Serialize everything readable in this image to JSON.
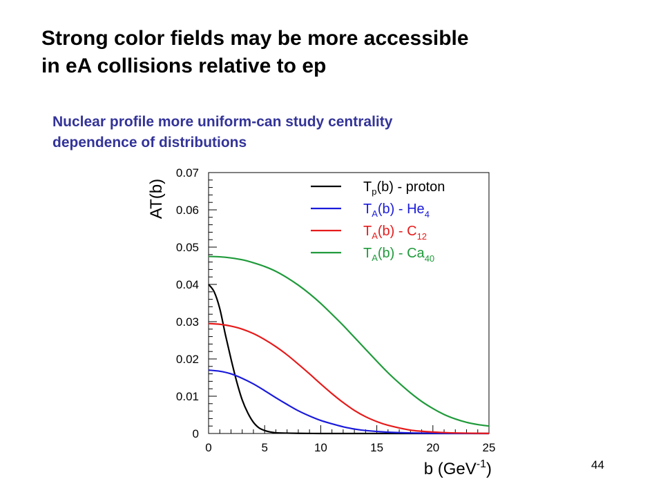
{
  "slide": {
    "title_lines": [
      "Strong color fields may be more accessible",
      "in eA collisions relative to ep"
    ],
    "subtitle_lines": [
      "Nuclear profile more uniform-can study centrality",
      "dependence of distributions"
    ],
    "page_number": "44"
  },
  "chart_data": {
    "type": "line",
    "ylabel": "AT(b)",
    "xlabel": {
      "main": "b (GeV",
      "sup": "-1",
      "close": ")"
    },
    "xlim": [
      0,
      25
    ],
    "ylim": [
      0,
      0.07
    ],
    "xticks": [
      0,
      5,
      10,
      15,
      20,
      25
    ],
    "xtick_labels": [
      "0",
      "5",
      "10",
      "15",
      "20",
      "25"
    ],
    "yticks": [
      0,
      0.01,
      0.02,
      0.03,
      0.04,
      0.05,
      0.06,
      0.07
    ],
    "ytick_labels": [
      "0",
      "0.01",
      "0.02",
      "0.03",
      "0.04",
      "0.05",
      "0.06",
      "0.07"
    ],
    "legend_position": "top-right",
    "grid": false,
    "series": [
      {
        "legend": {
          "main": "T",
          "sub": "p",
          "rest": "(b) - proton",
          "sub2": ""
        },
        "color": "#000000",
        "x": [
          0,
          0.5,
          1,
          1.5,
          2,
          2.5,
          3,
          3.5,
          4,
          4.5,
          5,
          5.5,
          6,
          7,
          8,
          10,
          12,
          15,
          20,
          25
        ],
        "y": [
          0.04,
          0.038,
          0.0335,
          0.0265,
          0.02,
          0.014,
          0.009,
          0.0055,
          0.003,
          0.0015,
          0.0008,
          0.0004,
          0.0002,
          0.0001,
          5e-05,
          0,
          0,
          0,
          0,
          0
        ]
      },
      {
        "legend": {
          "main": "T",
          "sub": "A",
          "rest": "(b) - He",
          "sub2": "4"
        },
        "color": "#1a1adb",
        "x": [
          0,
          1,
          2,
          3,
          4,
          5,
          6,
          7,
          8,
          9,
          10,
          11,
          12,
          13,
          14,
          16,
          18,
          20,
          22,
          25
        ],
        "y": [
          0.017,
          0.0167,
          0.016,
          0.0148,
          0.0133,
          0.0115,
          0.0096,
          0.0078,
          0.0061,
          0.0047,
          0.0035,
          0.0026,
          0.0018,
          0.0012,
          0.0008,
          0.00035,
          0.00015,
          6e-05,
          2e-05,
          0
        ]
      },
      {
        "legend": {
          "main": "T",
          "sub": "A",
          "rest": "(b) - C",
          "sub2": "12"
        },
        "color": "#e61a1a",
        "x": [
          0,
          1,
          2,
          3,
          4,
          5,
          6,
          7,
          8,
          9,
          10,
          11,
          12,
          13,
          14,
          15,
          16,
          18,
          20,
          22,
          25
        ],
        "y": [
          0.0295,
          0.0293,
          0.0288,
          0.028,
          0.0268,
          0.0252,
          0.0233,
          0.0211,
          0.0186,
          0.016,
          0.0133,
          0.0107,
          0.0083,
          0.0062,
          0.0045,
          0.0032,
          0.0022,
          0.0009,
          0.0004,
          0.00015,
          3e-05
        ]
      },
      {
        "legend": {
          "main": "T",
          "sub": "A",
          "rest": "(b) - Ca",
          "sub2": "40"
        },
        "color": "#1f9a3a",
        "x": [
          0,
          1,
          2,
          3,
          4,
          5,
          6,
          7,
          8,
          9,
          10,
          11,
          12,
          13,
          14,
          15,
          16,
          17,
          18,
          19,
          20,
          21,
          22,
          23,
          24,
          25
        ],
        "y": [
          0.0475,
          0.0474,
          0.0471,
          0.0466,
          0.0458,
          0.0448,
          0.0435,
          0.0418,
          0.0398,
          0.0375,
          0.0349,
          0.032,
          0.029,
          0.0258,
          0.0226,
          0.0194,
          0.0163,
          0.0135,
          0.0109,
          0.0086,
          0.0067,
          0.0051,
          0.0039,
          0.003,
          0.0024,
          0.002
        ]
      }
    ]
  }
}
